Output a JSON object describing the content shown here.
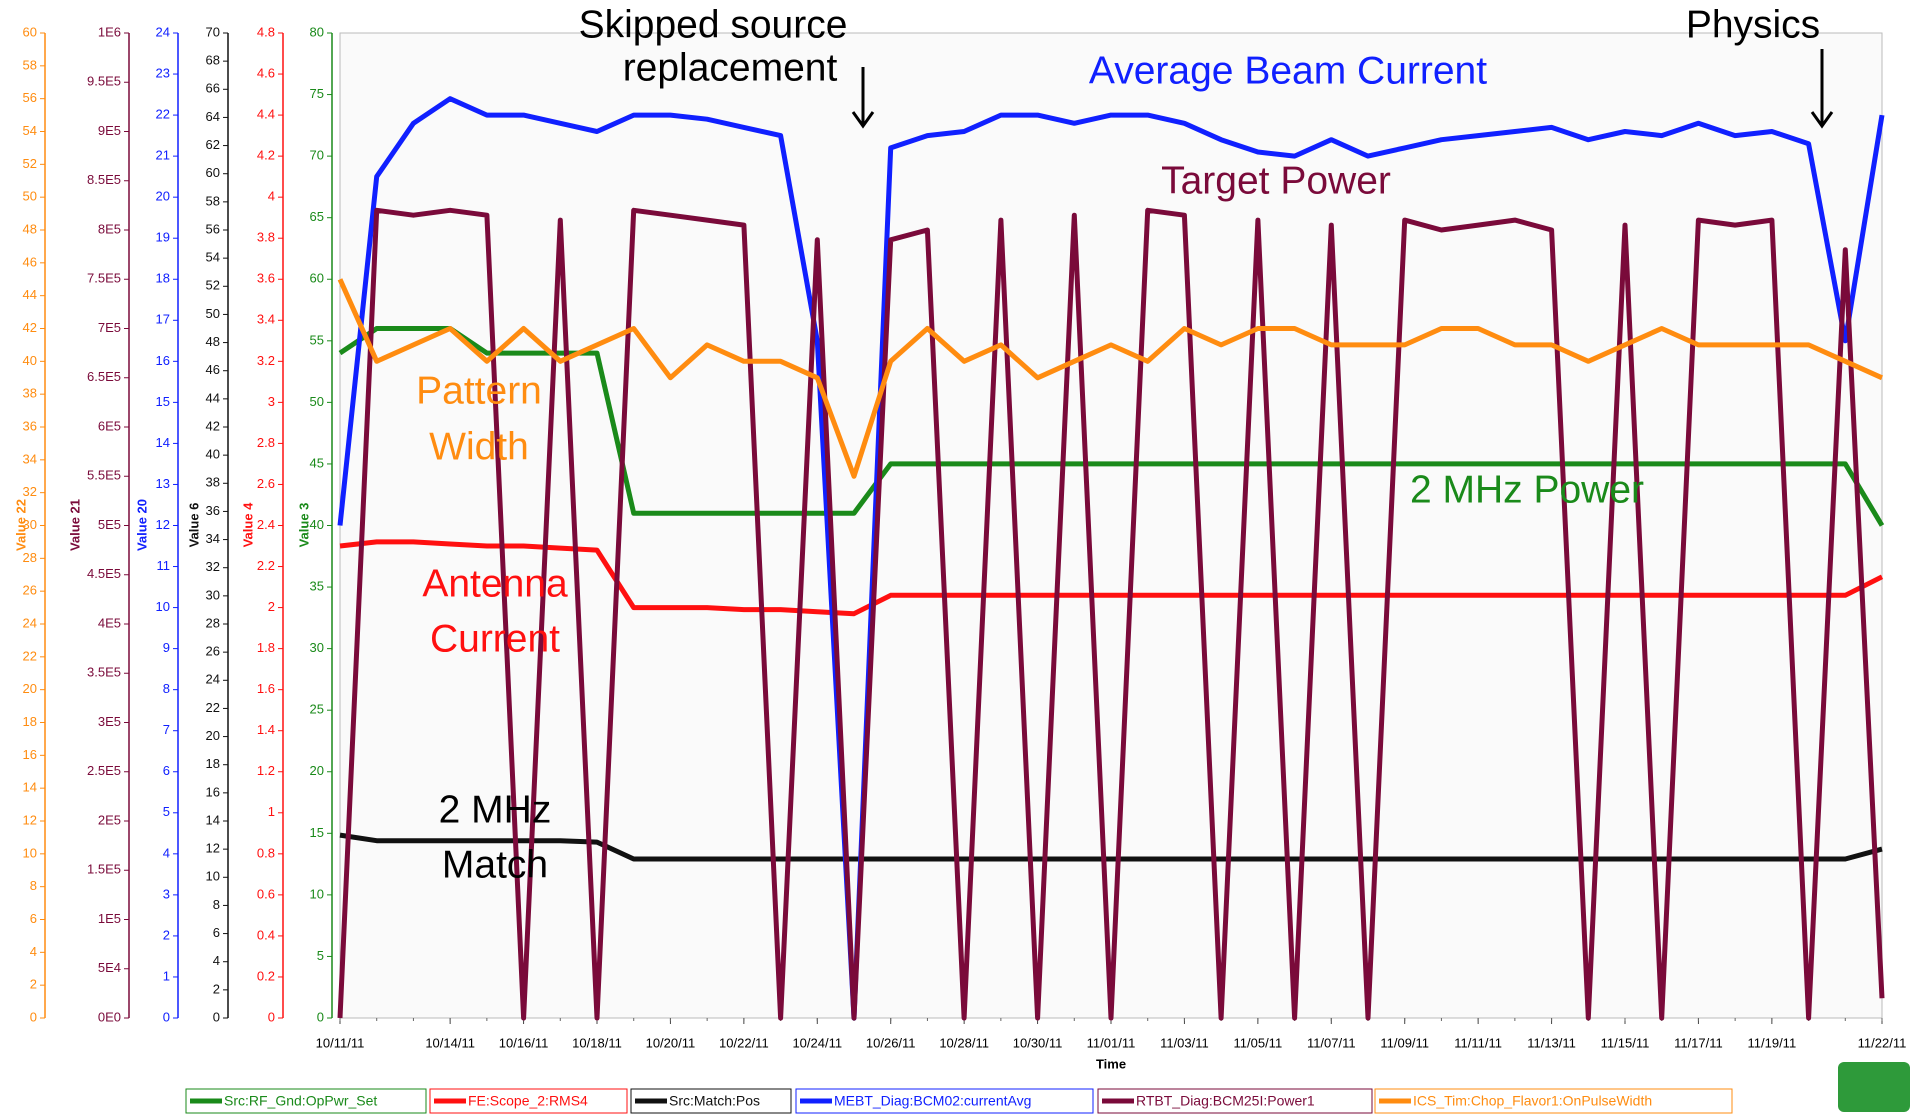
{
  "chart_data": {
    "type": "line",
    "xlabel": "Time",
    "x": [
      "10/11/11",
      "10/12/11",
      "10/13/11",
      "10/14/11",
      "10/15/11",
      "10/16/11",
      "10/17/11",
      "10/18/11",
      "10/19/11",
      "10/20/11",
      "10/21/11",
      "10/22/11",
      "10/23/11",
      "10/24/11",
      "10/25/11",
      "10/26/11",
      "10/27/11",
      "10/28/11",
      "10/29/11",
      "10/30/11",
      "10/31/11",
      "11/01/11",
      "11/02/11",
      "11/03/11",
      "11/04/11",
      "11/05/11",
      "11/06/11",
      "11/07/11",
      "11/08/11",
      "11/09/11",
      "11/10/11",
      "11/11/11",
      "11/12/11",
      "11/13/11",
      "11/14/11",
      "11/15/11",
      "11/16/11",
      "11/17/11",
      "11/18/11",
      "11/19/11",
      "11/20/11",
      "11/21/11",
      "11/22/11"
    ],
    "xticks": [
      "10/11/11",
      "10/14/11",
      "10/16/11",
      "10/18/11",
      "10/20/11",
      "10/22/11",
      "10/24/11",
      "10/26/11",
      "10/28/11",
      "10/30/11",
      "11/01/11",
      "11/03/11",
      "11/05/11",
      "11/07/11",
      "11/09/11",
      "11/11/11",
      "11/13/11",
      "11/15/11",
      "11/17/11",
      "11/19/11",
      "11/22/11"
    ],
    "series": [
      {
        "name": "Src:RF_Gnd:OpPwr_Set",
        "color": "#1a8a1a",
        "axis_label": "Value 3",
        "ylim": [
          0,
          80
        ],
        "yticks": [
          0,
          5,
          10,
          15,
          20,
          25,
          30,
          35,
          40,
          45,
          50,
          55,
          60,
          65,
          70,
          75,
          80
        ],
        "values": [
          54,
          56,
          56,
          56,
          54,
          54,
          54,
          54,
          41,
          41,
          41,
          41,
          41,
          41,
          41,
          45,
          45,
          45,
          45,
          45,
          45,
          45,
          45,
          45,
          45,
          45,
          45,
          45,
          45,
          45,
          45,
          45,
          45,
          45,
          45,
          45,
          45,
          45,
          45,
          45,
          45,
          45,
          40
        ]
      },
      {
        "name": "FE:Scope_2:RMS4",
        "color": "#ff1010",
        "axis_label": "Value 4",
        "ylim": [
          0,
          4.8
        ],
        "yticks": [
          0,
          0.2,
          0.4,
          0.6,
          0.8,
          1,
          1.2,
          1.4,
          1.6,
          1.8,
          2,
          2.2,
          2.4,
          2.6,
          2.8,
          3,
          3.2,
          3.4,
          3.6,
          3.8,
          4,
          4.2,
          4.4,
          4.6,
          4.8
        ],
        "values": [
          2.3,
          2.32,
          2.32,
          2.31,
          2.3,
          2.3,
          2.29,
          2.28,
          2.0,
          2.0,
          2.0,
          1.99,
          1.99,
          1.98,
          1.97,
          2.06,
          2.06,
          2.06,
          2.06,
          2.06,
          2.06,
          2.06,
          2.06,
          2.06,
          2.06,
          2.06,
          2.06,
          2.06,
          2.06,
          2.06,
          2.06,
          2.06,
          2.06,
          2.06,
          2.06,
          2.06,
          2.06,
          2.06,
          2.06,
          2.06,
          2.06,
          2.06,
          2.15
        ]
      },
      {
        "name": "Src:Match:Pos",
        "color": "#111111",
        "axis_label": "Value 6",
        "ylim": [
          0,
          70
        ],
        "yticks": [
          0,
          2,
          4,
          6,
          8,
          10,
          12,
          14,
          16,
          18,
          20,
          22,
          24,
          26,
          28,
          30,
          32,
          34,
          36,
          38,
          40,
          42,
          44,
          46,
          48,
          50,
          52,
          54,
          56,
          58,
          60,
          62,
          64,
          66,
          68,
          70
        ],
        "values": [
          13,
          12.6,
          12.6,
          12.6,
          12.6,
          12.6,
          12.6,
          12.5,
          11.3,
          11.3,
          11.3,
          11.3,
          11.3,
          11.3,
          11.3,
          11.3,
          11.3,
          11.3,
          11.3,
          11.3,
          11.3,
          11.3,
          11.3,
          11.3,
          11.3,
          11.3,
          11.3,
          11.3,
          11.3,
          11.3,
          11.3,
          11.3,
          11.3,
          11.3,
          11.3,
          11.3,
          11.3,
          11.3,
          11.3,
          11.3,
          11.3,
          11.3,
          12
        ]
      },
      {
        "name": "MEBT_Diag:BCM02:currentAvg",
        "color": "#1020ff",
        "axis_label": "Value 20",
        "ylim": [
          0,
          24
        ],
        "yticks": [
          0,
          1,
          2,
          3,
          4,
          5,
          6,
          7,
          8,
          9,
          10,
          11,
          12,
          13,
          14,
          15,
          16,
          17,
          18,
          19,
          20,
          21,
          22,
          23,
          24
        ],
        "values": [
          12,
          20.5,
          21.8,
          22.4,
          22,
          22,
          21.8,
          21.6,
          22,
          22,
          21.9,
          21.7,
          21.5,
          16.5,
          0,
          21.2,
          21.5,
          21.6,
          22,
          22,
          21.8,
          22,
          22,
          21.8,
          21.4,
          21.1,
          21,
          21.4,
          21,
          21.2,
          21.4,
          21.5,
          21.6,
          21.7,
          21.4,
          21.6,
          21.5,
          21.8,
          21.5,
          21.6,
          21.3,
          16.5,
          22
        ]
      },
      {
        "name": "RTBT_Diag:BCM25I:Power1",
        "color": "#7a0a3a",
        "axis_label": "Value 21",
        "ylim": [
          0,
          1000000
        ],
        "yticks": [
          {
            "value": 0,
            "label": "0E0"
          },
          {
            "value": 50000,
            "label": "5E4"
          },
          {
            "value": 100000,
            "label": "1E5"
          },
          {
            "value": 150000,
            "label": "1.5E5"
          },
          {
            "value": 200000,
            "label": "2E5"
          },
          {
            "value": 250000,
            "label": "2.5E5"
          },
          {
            "value": 300000,
            "label": "3E5"
          },
          {
            "value": 350000,
            "label": "3.5E5"
          },
          {
            "value": 400000,
            "label": "4E5"
          },
          {
            "value": 450000,
            "label": "4.5E5"
          },
          {
            "value": 500000,
            "label": "5E5"
          },
          {
            "value": 550000,
            "label": "5.5E5"
          },
          {
            "value": 600000,
            "label": "6E5"
          },
          {
            "value": 650000,
            "label": "6.5E5"
          },
          {
            "value": 700000,
            "label": "7E5"
          },
          {
            "value": 750000,
            "label": "7.5E5"
          },
          {
            "value": 800000,
            "label": "8E5"
          },
          {
            "value": 850000,
            "label": "8.5E5"
          },
          {
            "value": 900000,
            "label": "9E5"
          },
          {
            "value": 950000,
            "label": "9.5E5"
          },
          {
            "value": 1000000,
            "label": "1E6"
          }
        ],
        "values": [
          0,
          820000,
          815000,
          820000,
          815000,
          0,
          810000,
          0,
          820000,
          815000,
          810000,
          805000,
          0,
          790000,
          0,
          790000,
          800000,
          0,
          810000,
          0,
          815000,
          0,
          820000,
          815000,
          0,
          810000,
          0,
          805000,
          0,
          810000,
          800000,
          805000,
          810000,
          800000,
          0,
          805000,
          0,
          810000,
          805000,
          810000,
          0,
          780000,
          20000
        ]
      },
      {
        "name": "ICS_Tim:Chop_Flavor1:OnPulseWidth",
        "color": "#ff8c10",
        "axis_label": "Value 22",
        "ylim": [
          0,
          60
        ],
        "yticks": [
          0,
          2,
          4,
          6,
          8,
          10,
          12,
          14,
          16,
          18,
          20,
          22,
          24,
          26,
          28,
          30,
          32,
          34,
          36,
          38,
          40,
          42,
          44,
          46,
          48,
          50,
          52,
          54,
          56,
          58,
          60
        ],
        "values": [
          45,
          40,
          41,
          42,
          40,
          42,
          40,
          41,
          42,
          39,
          41,
          40,
          40,
          39,
          33,
          40,
          42,
          40,
          41,
          39,
          40,
          41,
          40,
          42,
          41,
          42,
          42,
          41,
          41,
          41,
          42,
          42,
          41,
          41,
          40,
          41,
          42,
          41,
          41,
          41,
          41,
          40,
          39
        ]
      }
    ],
    "annotations": [
      {
        "lines": [
          "Skipped source",
          "replacement"
        ],
        "color": "#000000"
      },
      {
        "lines": [
          "Physics"
        ],
        "color": "#000000"
      },
      {
        "lines": [
          "Average Beam Current"
        ],
        "color": "#1020ff"
      },
      {
        "lines": [
          "Target Power"
        ],
        "color": "#7a0a3a"
      },
      {
        "lines": [
          "Pattern",
          "Width"
        ],
        "color": "#ff8c10"
      },
      {
        "lines": [
          "2 MHz Power"
        ],
        "color": "#1a8a1a"
      },
      {
        "lines": [
          "Antenna",
          "Current"
        ],
        "color": "#ff1010"
      },
      {
        "lines": [
          "2 MHz",
          "Match"
        ],
        "color": "#000000"
      }
    ]
  }
}
